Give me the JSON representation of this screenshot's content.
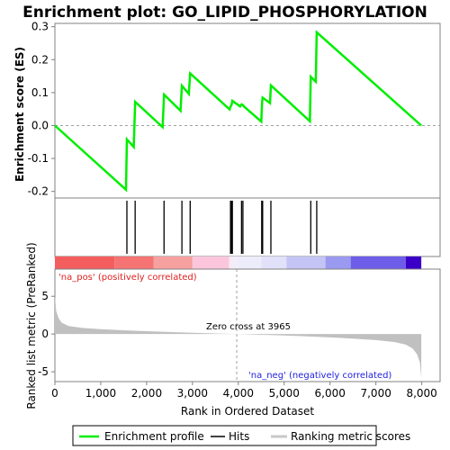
{
  "chart_data": {
    "type": "line",
    "title": "Enrichment plot: GO_LIPID_PHOSPHORYLATION",
    "es_panel": {
      "ylabel": "Enrichment score (ES)",
      "ylim": [
        -0.22,
        0.31
      ],
      "yticks": [
        -0.2,
        -0.1,
        0.0,
        0.1,
        0.2,
        0.3
      ],
      "ytick_labels": [
        "-0.2",
        "-0.1",
        "0.0",
        "0.1",
        "0.2",
        "0.3"
      ],
      "series": [
        {
          "color": "#00ee00",
          "points": [
            [
              0,
              0.0
            ],
            [
              1550,
              -0.195
            ],
            [
              1570,
              -0.042
            ],
            [
              1720,
              -0.065
            ],
            [
              1750,
              0.072
            ],
            [
              2350,
              -0.005
            ],
            [
              2380,
              0.094
            ],
            [
              2740,
              0.045
            ],
            [
              2770,
              0.121
            ],
            [
              2920,
              0.096
            ],
            [
              2950,
              0.158
            ],
            [
              3810,
              0.049
            ],
            [
              3830,
              0.057
            ],
            [
              3850,
              0.062
            ],
            [
              3870,
              0.075
            ],
            [
              4040,
              0.058
            ],
            [
              4070,
              0.064
            ],
            [
              4100,
              0.062
            ],
            [
              4130,
              0.057
            ],
            [
              4500,
              0.012
            ],
            [
              4510,
              0.045
            ],
            [
              4520,
              0.072
            ],
            [
              4530,
              0.085
            ],
            [
              4690,
              0.068
            ],
            [
              4710,
              0.122
            ],
            [
              5560,
              0.013
            ],
            [
              5580,
              0.148
            ],
            [
              5690,
              0.133
            ],
            [
              5710,
              0.283
            ],
            [
              7990,
              0.0
            ]
          ]
        }
      ]
    },
    "hits": [
      1570,
      1750,
      2380,
      2770,
      2950,
      3830,
      3850,
      3870,
      4070,
      4100,
      4510,
      4520,
      4530,
      4710,
      5580,
      5710
    ],
    "color_bar": {
      "segments": [
        {
          "from": 0,
          "to": 1300,
          "color": "#f45d5d"
        },
        {
          "from": 1300,
          "to": 2150,
          "color": "#f57373"
        },
        {
          "from": 2150,
          "to": 3000,
          "color": "#f7a0a0"
        },
        {
          "from": 3000,
          "to": 3800,
          "color": "#fbc6dc"
        },
        {
          "from": 3800,
          "to": 4000,
          "color": "#f4ecf7"
        },
        {
          "from": 4000,
          "to": 4500,
          "color": "#ececfb"
        },
        {
          "from": 4500,
          "to": 5050,
          "color": "#e1e1fa"
        },
        {
          "from": 5050,
          "to": 5900,
          "color": "#c4c4f6"
        },
        {
          "from": 5900,
          "to": 6450,
          "color": "#9a9af0"
        },
        {
          "from": 6450,
          "to": 7650,
          "color": "#6d5de9"
        },
        {
          "from": 7650,
          "to": 7990,
          "color": "#3a00c8"
        }
      ]
    },
    "rank_panel": {
      "ylabel": "Ranked list metric (PreRanked)",
      "ylim": [
        -6.3,
        8.6
      ],
      "yticks": [
        -5,
        0,
        5
      ],
      "ytick_labels": [
        "-5",
        "0",
        "5"
      ],
      "profile": [
        [
          0,
          5.1
        ],
        [
          30,
          3.0
        ],
        [
          80,
          2.1
        ],
        [
          150,
          1.5
        ],
        [
          300,
          1.05
        ],
        [
          600,
          0.8
        ],
        [
          1000,
          0.65
        ],
        [
          1500,
          0.5
        ],
        [
          2000,
          0.38
        ],
        [
          2500,
          0.27
        ],
        [
          3000,
          0.17
        ],
        [
          3500,
          0.08
        ],
        [
          3965,
          0.0
        ],
        [
          4500,
          -0.1
        ],
        [
          5000,
          -0.2
        ],
        [
          5500,
          -0.32
        ],
        [
          6000,
          -0.45
        ],
        [
          6500,
          -0.6
        ],
        [
          7000,
          -0.8
        ],
        [
          7400,
          -1.05
        ],
        [
          7650,
          -1.4
        ],
        [
          7800,
          -1.9
        ],
        [
          7900,
          -2.7
        ],
        [
          7960,
          -3.8
        ],
        [
          7990,
          -5.8
        ]
      ],
      "zero_cross_label": "Zero cross at 3965",
      "zero_cross": 3965,
      "pos_label": "'na_pos' (positively correlated)",
      "neg_label": "'na_neg' (negatively correlated)"
    },
    "x_axis": {
      "xlabel": "Rank in Ordered Dataset",
      "xlim": [
        0,
        8400
      ],
      "xticks": [
        0,
        1000,
        2000,
        3000,
        4000,
        5000,
        6000,
        7000,
        8000
      ],
      "xtick_labels": [
        "0",
        "1,000",
        "2,000",
        "3,000",
        "4,000",
        "5,000",
        "6,000",
        "7,000",
        "8,000"
      ]
    },
    "legend": {
      "position": "bottom",
      "items": [
        {
          "label": "Enrichment profile",
          "color": "#00ee00"
        },
        {
          "label": "Hits",
          "color": "#000000"
        },
        {
          "label": "Ranking metric scores",
          "color": "#c8c8c8"
        }
      ]
    }
  }
}
